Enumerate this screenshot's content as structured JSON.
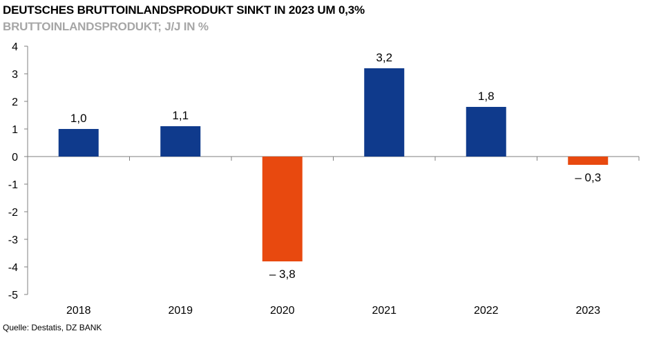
{
  "title": "DEUTSCHES BRUTTOINLANDSPRODUKT SINKT IN 2023 UM 0,3%",
  "subtitle": "BRUTTOINLANDSPRODUKT; J/J IN %",
  "source": "Quelle: Destatis, DZ BANK",
  "colors": {
    "positive": "#0f3a8c",
    "negative": "#e8490f",
    "axis": "#7f7f7f"
  },
  "chart_data": {
    "type": "bar",
    "categories": [
      "2018",
      "2019",
      "2020",
      "2021",
      "2022",
      "2023"
    ],
    "values": [
      1.0,
      1.1,
      -3.8,
      3.2,
      1.8,
      -0.3
    ],
    "data_labels": [
      "1,0",
      "1,1",
      "– 3,8",
      "3,2",
      "1,8",
      "– 0,3"
    ],
    "ylim": [
      -5,
      4
    ],
    "yticks": [
      4,
      3,
      2,
      1,
      0,
      -1,
      -2,
      -3,
      -4,
      -5
    ],
    "ytick_labels": [
      "4",
      "3",
      "2",
      "1",
      "0",
      "-1",
      "-2",
      "-3",
      "-4",
      "-5"
    ],
    "grid": false,
    "legend": "none"
  }
}
